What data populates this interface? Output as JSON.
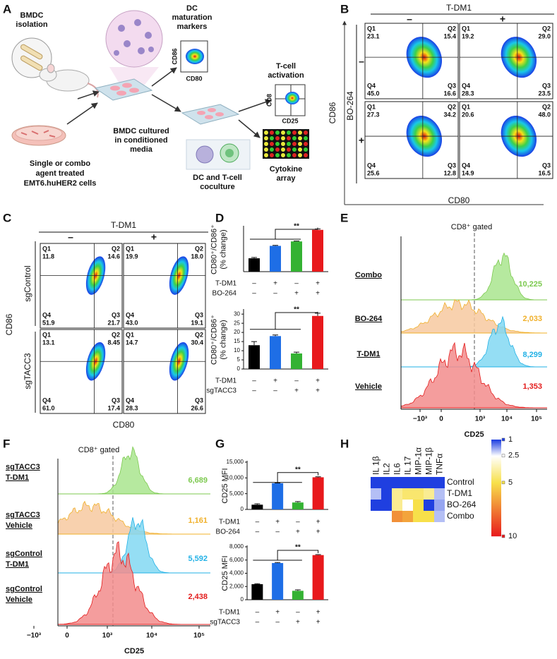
{
  "panel_letters": [
    "A",
    "B",
    "C",
    "D",
    "E",
    "F",
    "G",
    "H"
  ],
  "panel_a": {
    "labels": [
      {
        "lines": [
          "BMDC",
          "isolation"
        ]
      },
      {
        "lines": [
          "DC",
          "maturation",
          "markers"
        ]
      },
      {
        "lines": [
          "CD86"
        ]
      },
      {
        "lines": [
          "CD80"
        ]
      },
      {
        "lines": [
          "T-cell",
          "activation"
        ]
      },
      {
        "lines": [
          "CD8"
        ]
      },
      {
        "lines": [
          "CD25"
        ]
      },
      {
        "lines": [
          "BMDC cultured",
          "in conditioned",
          "media"
        ]
      },
      {
        "lines": [
          "Single or combo",
          "agent treated",
          "EMT6.huHER2 cells"
        ]
      },
      {
        "lines": [
          "DC and T-cell",
          "coculture"
        ]
      },
      {
        "lines": [
          "Cytokine",
          "array"
        ]
      }
    ]
  },
  "panel_b": {
    "column_header": "T-DM1",
    "column_signs": [
      "–",
      "+"
    ],
    "row_header": "BO-264",
    "row_signs": [
      "–",
      "+"
    ],
    "x_label": "CD80",
    "y_label": "CD86",
    "quadrant_names": [
      "Q1",
      "Q2",
      "Q4",
      "Q3"
    ],
    "plots": [
      [
        "23.1",
        "15.4",
        "45.0",
        "16.6"
      ],
      [
        "19.2",
        "29.0",
        "28.3",
        "23.5"
      ],
      [
        "27.3",
        "34.2",
        "25.6",
        "12.8"
      ],
      [
        "20.6",
        "48.0",
        "14.9",
        "16.5"
      ]
    ]
  },
  "panel_c": {
    "column_header": "T-DM1",
    "column_signs": [
      "–",
      "+"
    ],
    "row_labels": [
      "sgControl",
      "sgTACC3"
    ],
    "x_label": "CD80",
    "y_label": "CD86",
    "quadrant_names": [
      "Q1",
      "Q2",
      "Q4",
      "Q3"
    ],
    "plots": [
      [
        "11.8",
        "14.6",
        "51.9",
        "21.7"
      ],
      [
        "19.9",
        "18.0",
        "43.0",
        "19.1"
      ],
      [
        "13.1",
        "8.45",
        "61.0",
        "17.4"
      ],
      [
        "14.7",
        "30.4",
        "28.3",
        "26.6"
      ]
    ]
  },
  "panel_e": {
    "title": "CD8⁺ gated",
    "x_label": "CD25",
    "x_tick_labels": [
      "−10³",
      "0",
      "10³",
      "10⁴",
      "10⁵"
    ],
    "tracks": [
      {
        "label": [
          "Combo"
        ],
        "mfi": "10,225",
        "color": "#7cc94f",
        "fill": "#a9e58e"
      },
      {
        "label": [
          "BO-264"
        ],
        "mfi": "2,033",
        "color": "#f0b02a",
        "fill": "#f7c9a0"
      },
      {
        "label": [
          "T-DM1"
        ],
        "mfi": "8,299",
        "color": "#22b1e6",
        "fill": "#83d8f2"
      },
      {
        "label": [
          "Vehicle"
        ],
        "mfi": "1,353",
        "color": "#e31b1b",
        "fill": "#f28c8c"
      }
    ]
  },
  "panel_f": {
    "title": "CD8⁺ gated",
    "x_label": "CD25",
    "x_tick_labels": [
      "−10³",
      "0",
      "10³",
      "10⁴",
      "10⁵"
    ],
    "tracks": [
      {
        "label": [
          "sgTACC3",
          "T-DM1"
        ],
        "mfi": "6,689",
        "color": "#7cc94f",
        "fill": "#a9e58e"
      },
      {
        "label": [
          "sgTACC3",
          "Vehicle"
        ],
        "mfi": "1,161",
        "color": "#f0b02a",
        "fill": "#f7c9a0"
      },
      {
        "label": [
          "sgControl",
          "T-DM1"
        ],
        "mfi": "5,592",
        "color": "#22b1e6",
        "fill": "#83d8f2"
      },
      {
        "label": [
          "sgControl",
          "Vehicle"
        ],
        "mfi": "2,438",
        "color": "#e31b1b",
        "fill": "#f28c8c"
      }
    ]
  },
  "chart_data": [
    {
      "type": "bar",
      "ylabel": [
        "CD80⁺/CD86⁺",
        "(% change)"
      ],
      "values": [
        15,
        29,
        34,
        47
      ],
      "errors": [
        1,
        0.6,
        0.4,
        1
      ],
      "colors": [
        "#000000",
        "#1e6ee6",
        "#34b233",
        "#e8191c"
      ],
      "ylim": [
        0,
        50
      ],
      "conditions": [
        {
          "name": "T-DM1",
          "signs": [
            "–",
            "+",
            "–",
            "+"
          ]
        },
        {
          "name": "BO-264",
          "signs": [
            "–",
            "–",
            "+",
            "+"
          ]
        }
      ],
      "significance": "**"
    },
    {
      "type": "bar",
      "ylabel": [
        "CD80⁺/CD86⁺",
        "(% change)"
      ],
      "values": [
        13,
        18,
        8.5,
        29
      ],
      "errors": [
        2,
        0.6,
        0.7,
        1.5
      ],
      "colors": [
        "#000000",
        "#1e6ee6",
        "#34b233",
        "#e8191c"
      ],
      "ylim": [
        0,
        32
      ],
      "yticks": [
        0,
        5,
        10,
        15,
        20,
        25,
        30
      ],
      "conditions": [
        {
          "name": "T-DM1",
          "signs": [
            "–",
            "+",
            "–",
            "+"
          ]
        },
        {
          "name": "sgTACC3",
          "signs": [
            "–",
            "–",
            "+",
            "+"
          ]
        }
      ],
      "significance": "**"
    },
    {
      "type": "bar",
      "ylabel": [
        "CD25 MFI"
      ],
      "values": [
        1500,
        8300,
        2200,
        10200
      ],
      "errors": [
        300,
        100,
        300,
        150
      ],
      "colors": [
        "#000000",
        "#1e6ee6",
        "#34b233",
        "#e8191c"
      ],
      "ylim": [
        0,
        15000
      ],
      "yticks": [
        0,
        {
          "value": 5000,
          "label": "5,000"
        },
        {
          "value": 10000,
          "label": "10,000"
        },
        {
          "value": 15000,
          "label": "15,000"
        }
      ],
      "conditions": [
        {
          "name": "T-DM1",
          "signs": [
            "–",
            "+",
            "–",
            "+"
          ]
        },
        {
          "name": "BO-264",
          "signs": [
            "–",
            "–",
            "+",
            "+"
          ]
        }
      ],
      "significance": "**"
    },
    {
      "type": "bar",
      "ylabel": [
        "CD25 MFI"
      ],
      "values": [
        2350,
        5550,
        1350,
        6750
      ],
      "errors": [
        80,
        80,
        150,
        80
      ],
      "colors": [
        "#000000",
        "#1e6ee6",
        "#34b233",
        "#e8191c"
      ],
      "ylim": [
        0,
        8000
      ],
      "yticks": [
        0,
        {
          "value": 2000,
          "label": "2,000"
        },
        {
          "value": 4000,
          "label": "4,000"
        },
        {
          "value": 6000,
          "label": "6,000"
        },
        {
          "value": 8000,
          "label": "8,000"
        }
      ],
      "conditions": [
        {
          "name": "T-DM1",
          "signs": [
            "–",
            "+",
            "–",
            "+"
          ]
        },
        {
          "name": "sgTACC3",
          "signs": [
            "–",
            "–",
            "+",
            "+"
          ]
        }
      ],
      "significance": "**"
    },
    {
      "type": "heatmap",
      "columns": [
        "IL 1β",
        "IL2",
        "IL6",
        "IL 17",
        "MIP-1α",
        "MIP-1β",
        "TNFα"
      ],
      "rows": [
        "Control",
        "T-DM1",
        "BO-264",
        "Combo"
      ],
      "values": [
        [
          1,
          1,
          1,
          1,
          1,
          1,
          1
        ],
        [
          2,
          1,
          4,
          4.5,
          4.5,
          4,
          2
        ],
        [
          1,
          1,
          4,
          2.5,
          5,
          1,
          1.8
        ],
        [
          2.5,
          2.5,
          7,
          6.5,
          5,
          5,
          2
        ]
      ],
      "clim": [
        1,
        10
      ],
      "cticks": [
        1,
        2.5,
        5,
        10
      ],
      "colors": [
        "#1f3fe0",
        "#ffffff",
        "#f7e04a",
        "#e8191c"
      ]
    }
  ]
}
